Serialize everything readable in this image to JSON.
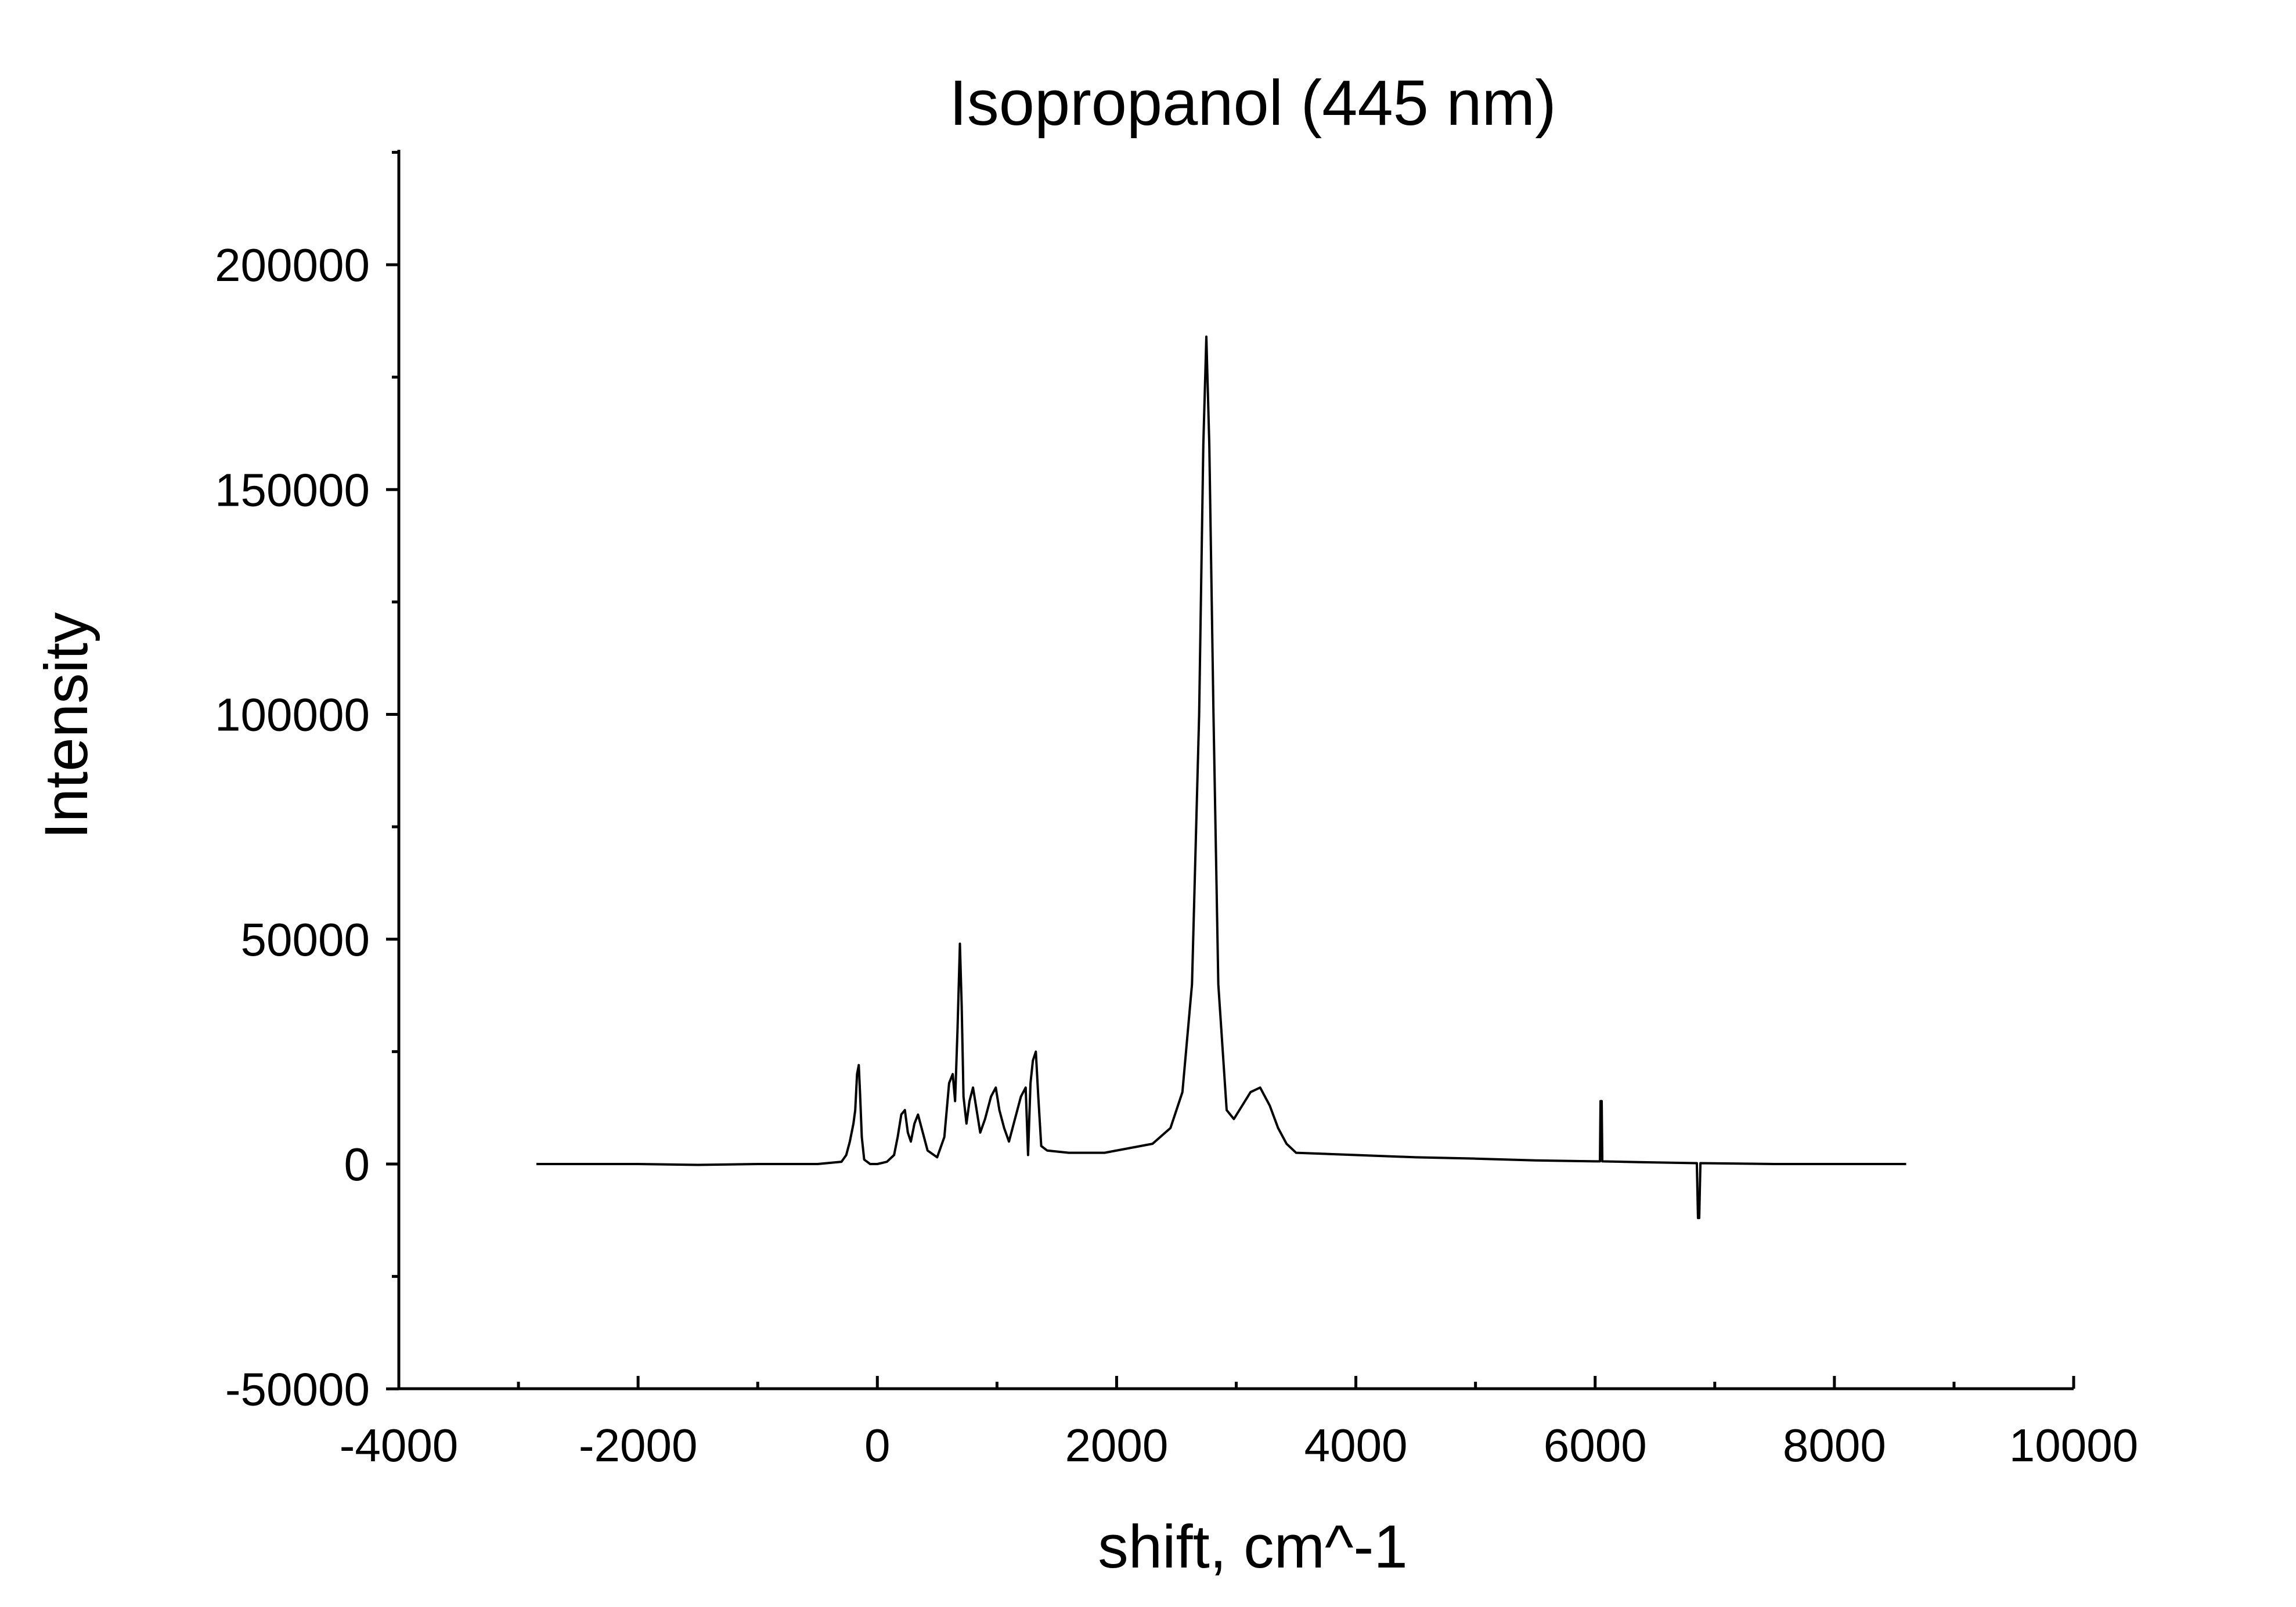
{
  "chart_data": {
    "type": "line",
    "title": "Isopropanol (445 nm)",
    "xlabel": "shift, cm^-1",
    "ylabel": "Intensity",
    "xlim": [
      -4000,
      10000
    ],
    "ylim": [
      -50000,
      225000
    ],
    "x_ticks": [
      -4000,
      -2000,
      0,
      2000,
      4000,
      6000,
      8000,
      10000
    ],
    "y_ticks": [
      -50000,
      0,
      50000,
      100000,
      150000,
      200000
    ],
    "x_tick_labels": [
      "-4000",
      "-2000",
      "0",
      "2000",
      "4000",
      "6000",
      "8000",
      "10000"
    ],
    "y_tick_labels": [
      "-50000",
      "0",
      "50000",
      "100000",
      "150000",
      "200000"
    ],
    "grid": false,
    "legend": "none",
    "colors": {
      "line": "#000000"
    },
    "series": [
      {
        "points": [
          [
            -2850,
            0
          ],
          [
            -2500,
            0
          ],
          [
            -2000,
            0
          ],
          [
            -1500,
            -200
          ],
          [
            -1000,
            0
          ],
          [
            -500,
            0
          ],
          [
            -300,
            500
          ],
          [
            -260,
            2000
          ],
          [
            -230,
            5000
          ],
          [
            -200,
            9000
          ],
          [
            -185,
            12000
          ],
          [
            -170,
            20000
          ],
          [
            -155,
            22000
          ],
          [
            -145,
            16000
          ],
          [
            -130,
            6000
          ],
          [
            -110,
            1000
          ],
          [
            -60,
            0
          ],
          [
            0,
            0
          ],
          [
            80,
            500
          ],
          [
            140,
            2000
          ],
          [
            170,
            6000
          ],
          [
            200,
            11000
          ],
          [
            230,
            12000
          ],
          [
            255,
            7000
          ],
          [
            280,
            5000
          ],
          [
            310,
            9000
          ],
          [
            340,
            11000
          ],
          [
            370,
            8000
          ],
          [
            420,
            3000
          ],
          [
            500,
            1500
          ],
          [
            560,
            6000
          ],
          [
            600,
            18000
          ],
          [
            630,
            20000
          ],
          [
            650,
            14000
          ],
          [
            670,
            30000
          ],
          [
            690,
            49000
          ],
          [
            705,
            35000
          ],
          [
            720,
            15000
          ],
          [
            745,
            9000
          ],
          [
            770,
            14000
          ],
          [
            800,
            17000
          ],
          [
            830,
            12000
          ],
          [
            860,
            7000
          ],
          [
            900,
            10000
          ],
          [
            950,
            15000
          ],
          [
            990,
            17000
          ],
          [
            1020,
            12000
          ],
          [
            1060,
            8000
          ],
          [
            1100,
            5000
          ],
          [
            1150,
            10000
          ],
          [
            1200,
            15000
          ],
          [
            1240,
            17000
          ],
          [
            1260,
            2000
          ],
          [
            1280,
            18000
          ],
          [
            1300,
            23000
          ],
          [
            1325,
            25000
          ],
          [
            1345,
            15000
          ],
          [
            1370,
            4000
          ],
          [
            1420,
            3000
          ],
          [
            1600,
            2500
          ],
          [
            1900,
            2500
          ],
          [
            2100,
            3500
          ],
          [
            2300,
            4500
          ],
          [
            2450,
            8000
          ],
          [
            2550,
            16000
          ],
          [
            2630,
            40000
          ],
          [
            2690,
            100000
          ],
          [
            2725,
            160000
          ],
          [
            2750,
            184000
          ],
          [
            2775,
            160000
          ],
          [
            2810,
            100000
          ],
          [
            2850,
            40000
          ],
          [
            2920,
            12000
          ],
          [
            2980,
            10000
          ],
          [
            3050,
            13000
          ],
          [
            3120,
            16000
          ],
          [
            3200,
            17000
          ],
          [
            3280,
            13000
          ],
          [
            3350,
            8000
          ],
          [
            3420,
            4500
          ],
          [
            3500,
            2500
          ],
          [
            4000,
            2000
          ],
          [
            4500,
            1500
          ],
          [
            5000,
            1200
          ],
          [
            5500,
            800
          ],
          [
            6000,
            600
          ],
          [
            6040,
            600
          ],
          [
            6045,
            14000
          ],
          [
            6055,
            14000
          ],
          [
            6060,
            600
          ],
          [
            6400,
            400
          ],
          [
            6850,
            200
          ],
          [
            6860,
            -12000
          ],
          [
            6870,
            -12000
          ],
          [
            6880,
            200
          ],
          [
            7500,
            0
          ],
          [
            8000,
            0
          ],
          [
            8600,
            0
          ]
        ]
      }
    ]
  }
}
